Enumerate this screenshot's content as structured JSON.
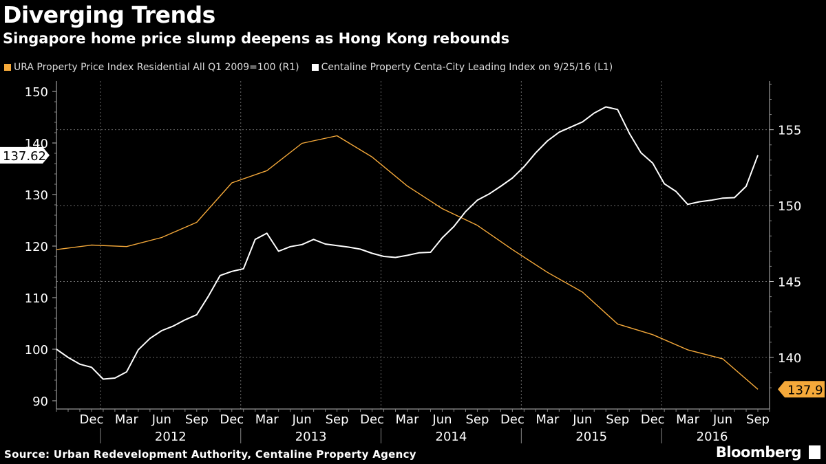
{
  "header": {
    "title": "Diverging Trends",
    "subtitle": "Singapore home price slump deepens as Hong Kong rebounds"
  },
  "legend": {
    "items": [
      {
        "label": "URA Property Price Index Residential All Q1 2009=100  (R1)",
        "color": "#f5a93a"
      },
      {
        "label": "Centaline Property Centa-City Leading Index  on 9/25/16 (L1)",
        "color": "#ffffff"
      }
    ]
  },
  "footer": {
    "source": "Source: Urban Redevelopment Authority, Centaline Property Agency",
    "brand": "Bloomberg"
  },
  "chart_data": {
    "type": "line",
    "title": "Diverging Trends",
    "left_axis": {
      "ticks": [
        90,
        100,
        110,
        120,
        130,
        140,
        150
      ],
      "range": [
        88.4,
        152
      ]
    },
    "right_axis": {
      "ticks": [
        140,
        145,
        150,
        155
      ],
      "range": [
        136.6,
        158.2
      ]
    },
    "x_axis": {
      "start_month": "2011-09",
      "end_month": "2016-10",
      "tick_labels": [
        {
          "month": "2011-12",
          "label": "Dec"
        },
        {
          "month": "2012-03",
          "label": "Mar"
        },
        {
          "month": "2012-06",
          "label": "Jun"
        },
        {
          "month": "2012-09",
          "label": "Sep"
        },
        {
          "month": "2012-12",
          "label": "Dec"
        },
        {
          "month": "2013-03",
          "label": "Mar"
        },
        {
          "month": "2013-06",
          "label": "Jun"
        },
        {
          "month": "2013-09",
          "label": "Sep"
        },
        {
          "month": "2013-12",
          "label": "Dec"
        },
        {
          "month": "2014-03",
          "label": "Mar"
        },
        {
          "month": "2014-06",
          "label": "Jun"
        },
        {
          "month": "2014-09",
          "label": "Sep"
        },
        {
          "month": "2014-12",
          "label": "Dec"
        },
        {
          "month": "2015-03",
          "label": "Mar"
        },
        {
          "month": "2015-06",
          "label": "Jun"
        },
        {
          "month": "2015-09",
          "label": "Sep"
        },
        {
          "month": "2015-12",
          "label": "Dec"
        },
        {
          "month": "2016-03",
          "label": "Mar"
        },
        {
          "month": "2016-06",
          "label": "Jun"
        },
        {
          "month": "2016-09",
          "label": "Sep"
        }
      ],
      "year_labels": [
        "2012",
        "2013",
        "2014",
        "2015",
        "2016"
      ]
    },
    "series": [
      {
        "name": "URA Property Price Index Residential All Q1 2009=100  (R1)",
        "axis": "right",
        "color": "#f5a93a",
        "last_value_label": "137.9",
        "points": [
          [
            "2011-09",
            147.1
          ],
          [
            "2011-12",
            147.4
          ],
          [
            "2012-03",
            147.3
          ],
          [
            "2012-06",
            147.9
          ],
          [
            "2012-09",
            148.9
          ],
          [
            "2012-12",
            151.5
          ],
          [
            "2013-03",
            152.3
          ],
          [
            "2013-06",
            154.1
          ],
          [
            "2013-09",
            154.6
          ],
          [
            "2013-12",
            153.2
          ],
          [
            "2014-03",
            151.3
          ],
          [
            "2014-06",
            149.8
          ],
          [
            "2014-09",
            148.7
          ],
          [
            "2014-12",
            147.1
          ],
          [
            "2015-03",
            145.6
          ],
          [
            "2015-06",
            144.3
          ],
          [
            "2015-09",
            142.2
          ],
          [
            "2015-12",
            141.5
          ],
          [
            "2016-03",
            140.5
          ],
          [
            "2016-06",
            139.9
          ],
          [
            "2016-09",
            137.9
          ]
        ]
      },
      {
        "name": "Centaline Property Centa-City Leading Index  on 9/25/16 (L1)",
        "axis": "left",
        "color": "#ffffff",
        "last_value_label": "137.62",
        "points": [
          [
            "2011-09",
            100
          ],
          [
            "2011-10",
            98.4
          ],
          [
            "2011-11",
            97.1
          ],
          [
            "2011-12",
            96.5
          ],
          [
            "2012-01",
            94.2
          ],
          [
            "2012-02",
            94.4
          ],
          [
            "2012-03",
            95.6
          ],
          [
            "2012-04",
            99.9
          ],
          [
            "2012-05",
            102.1
          ],
          [
            "2012-06",
            103.6
          ],
          [
            "2012-07",
            104.5
          ],
          [
            "2012-08",
            105.7
          ],
          [
            "2012-09",
            106.7
          ],
          [
            "2012-10",
            110.3
          ],
          [
            "2012-11",
            114.3
          ],
          [
            "2012-12",
            115.1
          ],
          [
            "2013-01",
            115.6
          ],
          [
            "2013-02",
            121.3
          ],
          [
            "2013-03",
            122.5
          ],
          [
            "2013-04",
            119.0
          ],
          [
            "2013-05",
            119.9
          ],
          [
            "2013-06",
            120.3
          ],
          [
            "2013-07",
            121.3
          ],
          [
            "2013-08",
            120.4
          ],
          [
            "2013-09",
            120.1
          ],
          [
            "2013-10",
            119.8
          ],
          [
            "2013-11",
            119.4
          ],
          [
            "2013-12",
            118.6
          ],
          [
            "2014-01",
            118.0
          ],
          [
            "2014-02",
            117.8
          ],
          [
            "2014-03",
            118.2
          ],
          [
            "2014-04",
            118.7
          ],
          [
            "2014-05",
            118.8
          ],
          [
            "2014-06",
            121.6
          ],
          [
            "2014-07",
            123.8
          ],
          [
            "2014-08",
            126.7
          ],
          [
            "2014-09",
            128.9
          ],
          [
            "2014-10",
            130.1
          ],
          [
            "2014-11",
            131.6
          ],
          [
            "2014-12",
            133.2
          ],
          [
            "2015-01",
            135.4
          ],
          [
            "2015-02",
            138.1
          ],
          [
            "2015-03",
            140.4
          ],
          [
            "2015-04",
            142.1
          ],
          [
            "2015-05",
            143.1
          ],
          [
            "2015-06",
            144.1
          ],
          [
            "2015-07",
            145.8
          ],
          [
            "2015-08",
            147.0
          ],
          [
            "2015-09",
            146.5
          ],
          [
            "2015-10",
            141.9
          ],
          [
            "2015-11",
            138.1
          ],
          [
            "2015-12",
            136.1
          ],
          [
            "2016-01",
            132.1
          ],
          [
            "2016-02",
            130.6
          ],
          [
            "2016-03",
            128.1
          ],
          [
            "2016-04",
            128.6
          ],
          [
            "2016-05",
            128.9
          ],
          [
            "2016-06",
            129.3
          ],
          [
            "2016-07",
            129.4
          ],
          [
            "2016-08",
            131.6
          ],
          [
            "2016-09",
            137.62
          ]
        ]
      }
    ]
  }
}
